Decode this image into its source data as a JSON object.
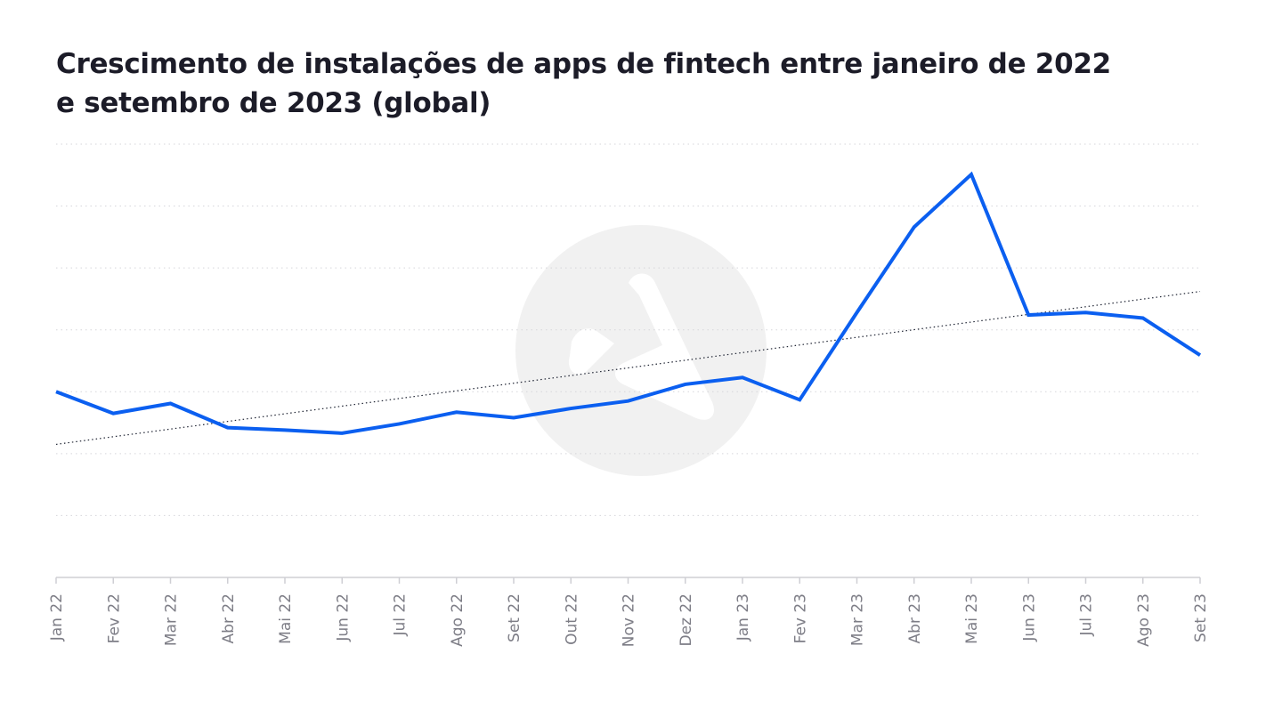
{
  "chart_data": {
    "type": "line",
    "title_lines": [
      "Crescimento de instalações de apps de fintech entre janeiro de 2022",
      "e setembro de 2023 (global)"
    ],
    "xlabel": "",
    "ylabel": "",
    "categories": [
      "Jan 22",
      "Fev 22",
      "Mar 22",
      "Abr 22",
      "Mai 22",
      "Jun 22",
      "Jul 22",
      "Ago 22",
      "Set 22",
      "Out 22",
      "Nov 22",
      "Dez 22",
      "Jan 23",
      "Fev 23",
      "Mar 23",
      "Abr 23",
      "Mai 23",
      "Jun 23",
      "Jul 23",
      "Ago 23",
      "Set 23"
    ],
    "series": [
      {
        "color": "#0b5ff0",
        "values": [
          3.0,
          2.65,
          2.81,
          2.42,
          2.38,
          2.33,
          2.48,
          2.67,
          2.58,
          2.73,
          2.85,
          3.12,
          3.23,
          2.87,
          4.28,
          5.66,
          6.51,
          4.24,
          4.28,
          4.19,
          3.59
        ]
      }
    ],
    "trendline": {
      "start": 2.15,
      "end": 4.62,
      "style": "dotted",
      "color": "#1f2433"
    },
    "ylim": [
      0,
      7
    ],
    "gridlines": [
      1,
      2,
      3,
      4,
      5,
      6,
      7
    ],
    "grid": true,
    "y_tick_labels": false,
    "watermark": "logo-watermark"
  }
}
